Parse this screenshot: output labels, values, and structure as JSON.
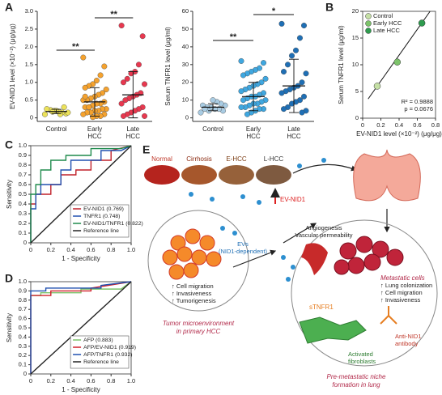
{
  "panel_labels": [
    "A",
    "B",
    "C",
    "D",
    "E"
  ],
  "chart_data": [
    {
      "type": "strip",
      "ylabel": "EV-NID1 level (×10⁻²) (μg/μg)",
      "categories": [
        "Control",
        "Early HCC",
        "Late HCC"
      ],
      "ylim": [
        -0.1,
        3.0
      ],
      "yticks": [
        0,
        0.5,
        {
          "value": 1,
          "label": "1.0"
        },
        1.5,
        {
          "value": 2,
          "label": "2.0"
        },
        2.5,
        {
          "value": 3,
          "label": "3.0"
        }
      ],
      "annotations": [
        "**",
        "**"
      ],
      "series": [
        {
          "name": "Control",
          "color": "#ece25a",
          "mean": 0.18,
          "sd": 0.06,
          "values": [
            0.1,
            0.12,
            0.15,
            0.18,
            0.2,
            0.22,
            0.25,
            0.15,
            0.3,
            0.1,
            0.2,
            0.17
          ]
        },
        {
          "name": "Early HCC",
          "color": "#f5a22e",
          "mean": 0.45,
          "sd": 0.4,
          "values": [
            1.7,
            1.45,
            1.2,
            1.05,
            0.95,
            0.9,
            0.85,
            0.8,
            0.7,
            0.65,
            0.6,
            0.55,
            0.5,
            0.5,
            0.45,
            0.4,
            0.4,
            0.35,
            0.3,
            0.3,
            0.25,
            0.25,
            0.2,
            0.2,
            0.15,
            0.15,
            0.1,
            0.1,
            0.05,
            0.05,
            0.02,
            0.3,
            0.6
          ]
        },
        {
          "name": "Late HCC",
          "color": "#e8384f",
          "mean": 0.65,
          "sd": 0.65,
          "values": [
            2.6,
            2.3,
            1.5,
            1.3,
            1.25,
            1.1,
            1.0,
            0.95,
            0.7,
            0.65,
            0.6,
            0.55,
            0.5,
            0.4,
            0.3,
            0.25,
            0.2,
            0.15,
            0.1,
            0.05,
            0.05
          ]
        }
      ]
    },
    {
      "type": "strip",
      "ylabel": "Serum TNFR1 level (μg/ml)",
      "categories": [
        "Control",
        "Early HCC",
        "Late HCC"
      ],
      "ylim": [
        -2,
        60
      ],
      "yticks": [
        0,
        10,
        20,
        30,
        40,
        50,
        60
      ],
      "annotations": [
        "**",
        "*"
      ],
      "series": [
        {
          "name": "Control",
          "color": "#a9cce3",
          "mean": 6,
          "sd": 2,
          "values": [
            3,
            4,
            5,
            5,
            6,
            6,
            7,
            7,
            8,
            9,
            10,
            4,
            5
          ]
        },
        {
          "name": "Early HCC",
          "color": "#3fa7e0",
          "mean": 12,
          "sd": 8,
          "values": [
            32,
            31,
            28,
            27,
            26,
            25,
            24,
            22,
            20,
            19,
            18,
            17,
            16,
            15,
            14,
            13,
            12,
            12,
            11,
            10,
            10,
            9,
            8,
            8,
            7,
            6,
            6,
            5,
            5,
            4,
            3,
            2
          ]
        },
        {
          "name": "Late HCC",
          "color": "#1f6fb5",
          "mean": 18,
          "sd": 15,
          "values": [
            53,
            52,
            45,
            38,
            35,
            30,
            26,
            25,
            20,
            18,
            17,
            16,
            15,
            14,
            12,
            10,
            9,
            8,
            6,
            5,
            4,
            3
          ]
        }
      ]
    },
    {
      "type": "scatter",
      "xlabel": "EV-NID1 level (×10⁻²) (μg/μg)",
      "ylabel": "Serum TNFR1 level (μg/ml)",
      "xlim": [
        0,
        0.8
      ],
      "xticks": [
        0,
        0.2,
        0.4,
        0.6,
        0.8
      ],
      "ylim": [
        0,
        20
      ],
      "yticks": [
        0,
        5,
        10,
        15,
        20
      ],
      "legend": "top-left",
      "annotations": [
        "R² = 0.9888",
        "p = 0.0676"
      ],
      "trend_line": {
        "x": [
          0.06,
          0.74
        ],
        "values": [
          3.6,
          20
        ]
      },
      "series": [
        {
          "name": "Control",
          "color": "#c5e0a5",
          "x": [
            0.16
          ],
          "values": [
            6
          ]
        },
        {
          "name": "Early HCC",
          "color": "#7cc36a",
          "x": [
            0.38
          ],
          "values": [
            10.5
          ]
        },
        {
          "name": "Late HCC",
          "color": "#2e9b4e",
          "x": [
            0.65
          ],
          "values": [
            17.8
          ]
        }
      ]
    },
    {
      "type": "line",
      "xlabel": "1 - Specificity",
      "ylabel": "Sensitivity",
      "xlim": [
        0,
        1
      ],
      "xticks": [
        0,
        0.2,
        0.4,
        0.6,
        0.8,
        {
          "value": 1,
          "label": "1.0"
        }
      ],
      "ylim": [
        0,
        1
      ],
      "yticks": [
        0,
        0.1,
        0.2,
        0.3,
        0.4,
        0.5,
        0.6,
        0.7,
        0.8,
        0.9,
        {
          "value": 1,
          "label": "1.0"
        }
      ],
      "legend": "bottom-right",
      "series": [
        {
          "name": "EV-NID1 (0.769)",
          "color": "#c0202a",
          "x": [
            0,
            0,
            0.05,
            0.05,
            0.2,
            0.2,
            0.3,
            0.3,
            0.45,
            0.45,
            0.6,
            0.6,
            0.8,
            0.8,
            1
          ],
          "values": [
            0,
            0.4,
            0.4,
            0.5,
            0.5,
            0.6,
            0.6,
            0.7,
            0.7,
            0.75,
            0.75,
            0.85,
            0.85,
            0.95,
            1
          ]
        },
        {
          "name": "TNFR1 (0.748)",
          "color": "#2050b0",
          "x": [
            0,
            0,
            0.05,
            0.05,
            0.1,
            0.1,
            0.3,
            0.3,
            0.4,
            0.4,
            0.7,
            0.7,
            0.9,
            1
          ],
          "values": [
            0,
            0.35,
            0.35,
            0.5,
            0.5,
            0.6,
            0.6,
            0.75,
            0.75,
            0.85,
            0.85,
            0.95,
            0.95,
            1
          ]
        },
        {
          "name": "EV-NID1/TNFR1 (0.822)",
          "color": "#1f8a4c",
          "x": [
            0,
            0,
            0.05,
            0.05,
            0.1,
            0.1,
            0.2,
            0.2,
            0.35,
            0.35,
            0.6,
            0.6,
            0.9,
            1
          ],
          "values": [
            0,
            0.5,
            0.5,
            0.6,
            0.6,
            0.75,
            0.75,
            0.85,
            0.85,
            0.9,
            0.9,
            0.97,
            0.97,
            1
          ]
        },
        {
          "name": "Reference line",
          "color": "#222222",
          "x": [
            0,
            1
          ],
          "values": [
            0,
            1
          ]
        }
      ]
    },
    {
      "type": "line",
      "xlabel": "1 - Specificity",
      "ylabel": "Sensitivity",
      "xlim": [
        0,
        1
      ],
      "xticks": [
        0,
        0.2,
        0.4,
        0.6,
        0.8,
        {
          "value": 1,
          "label": "1.0"
        }
      ],
      "ylim": [
        0,
        1
      ],
      "yticks": [
        0,
        0.1,
        0.2,
        0.3,
        0.4,
        0.5,
        0.6,
        0.7,
        0.8,
        0.9,
        {
          "value": 1,
          "label": "1.0"
        }
      ],
      "legend": "bottom-right",
      "series": [
        {
          "name": "AFP (0.883)",
          "color": "#7cc36a",
          "x": [
            0,
            0,
            0.1,
            0.1,
            0.5,
            0.5,
            0.9,
            1
          ],
          "values": [
            0,
            0.85,
            0.85,
            0.88,
            0.88,
            0.92,
            0.92,
            1
          ]
        },
        {
          "name": "AFP/EV-NID1 (0.919)",
          "color": "#d0202a",
          "x": [
            0,
            0,
            0.2,
            0.2,
            0.6,
            0.6,
            1
          ],
          "values": [
            0,
            0.85,
            0.85,
            0.9,
            0.9,
            0.93,
            1
          ]
        },
        {
          "name": "AFP/TNFR1 (0.932)",
          "color": "#2050b0",
          "x": [
            0,
            0,
            0.15,
            0.15,
            0.7,
            0.7,
            1
          ],
          "values": [
            0,
            0.9,
            0.9,
            0.93,
            0.93,
            0.96,
            1
          ]
        },
        {
          "name": "Reference line",
          "color": "#222222",
          "x": [
            0,
            1
          ],
          "values": [
            0,
            1
          ]
        }
      ]
    }
  ],
  "diagram": {
    "stages": [
      "Normal",
      "Cirrhosis",
      "E-HCC",
      "L-HCC"
    ],
    "ev_nid1": "EV-NID1",
    "evs": [
      "EVs",
      "(NID1-dependent)"
    ],
    "tme_effects": [
      "↑ Cell migration",
      "↑ Invasiveness",
      "↑ Tumorigenesis"
    ],
    "tme_caption": [
      "Tumor microenvironment",
      "in primary HCC"
    ],
    "angiogenesis": [
      "Angiogenesis",
      "Vascular permeability"
    ],
    "metastatic": [
      "Metastatic cells",
      "↑ Lung colonization",
      "↑ Cell migration",
      "↑ Invasiveness"
    ],
    "stnfr1": "sTNFR1",
    "fibroblasts": [
      "Activated",
      "fibroblasts"
    ],
    "antibody": [
      "Anti-NID1",
      "antibody"
    ],
    "niche_caption": [
      "Pre-metastatic niche",
      "formation in lung"
    ]
  }
}
